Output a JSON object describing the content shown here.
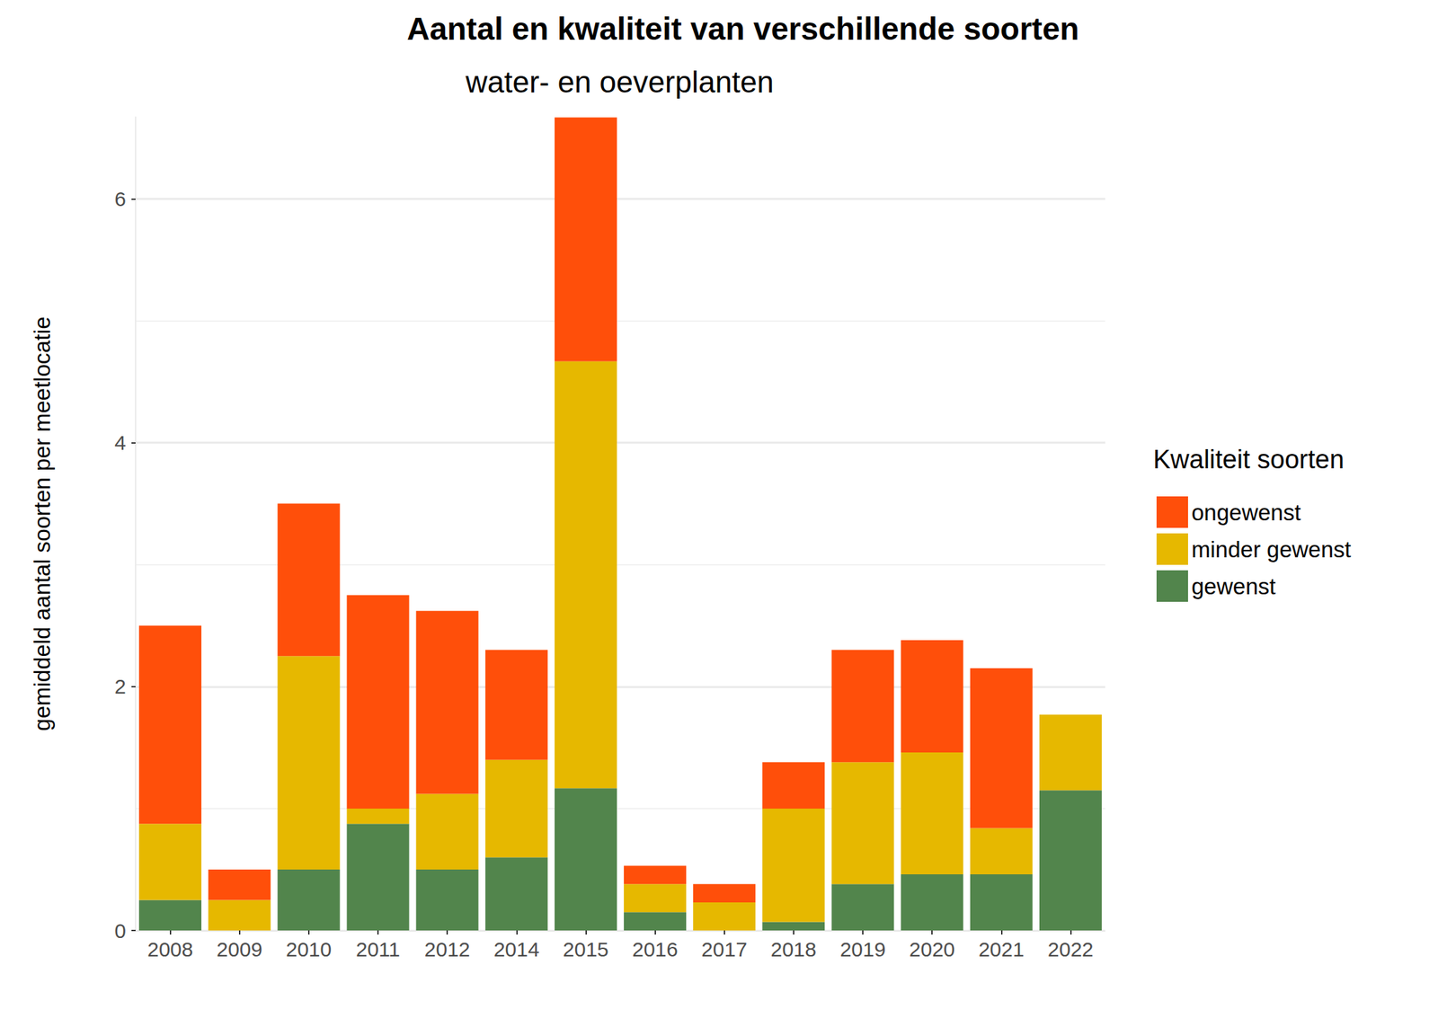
{
  "chart_data": {
    "type": "bar",
    "title": "Aantal en kwaliteit van verschillende soorten",
    "subtitle": "water- en oeverplanten",
    "y_label": "gemiddeld aantal soorten per meetlocatie",
    "legend_title": "Kwaliteit soorten",
    "categories": [
      "2008",
      "2009",
      "2010",
      "2011",
      "2012",
      "2014",
      "2015",
      "2016",
      "2017",
      "2018",
      "2019",
      "2020",
      "2021",
      "2022"
    ],
    "series": [
      {
        "name": "ongewenst",
        "color": "#FF4F0A",
        "values": [
          1.625,
          0.25,
          1.25,
          1.75,
          1.5,
          0.9,
          2.0,
          0.15,
          0.15,
          0.38,
          0.92,
          0.92,
          1.31,
          0
        ]
      },
      {
        "name": "minder gewenst",
        "color": "#E6B800",
        "values": [
          0.625,
          0.25,
          1.75,
          0.125,
          0.62,
          0.8,
          3.5,
          0.23,
          0.23,
          0.93,
          1.0,
          1.0,
          0.38,
          0.62
        ]
      },
      {
        "name": "gewenst",
        "color": "#52854C",
        "values": [
          0.25,
          0,
          0.5,
          0.875,
          0.5,
          0.6,
          1.167,
          0.15,
          0,
          0.07,
          0.38,
          0.46,
          0.46,
          1.15
        ]
      }
    ],
    "stacked": true,
    "ylim": [
      0,
      6.67
    ],
    "yticks": [
      0,
      2,
      4,
      6
    ],
    "grid": true,
    "legend": "right"
  }
}
